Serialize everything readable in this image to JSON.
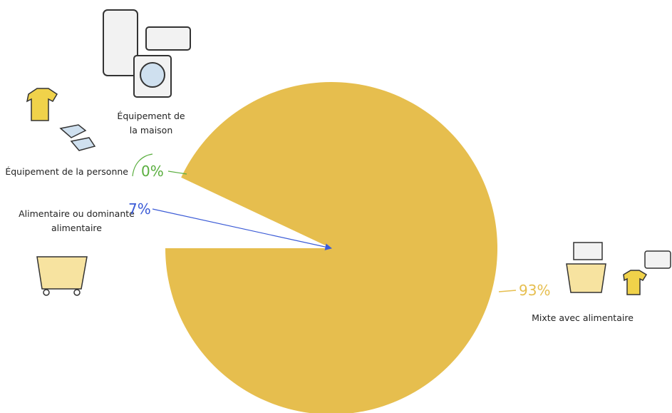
{
  "chart_data": {
    "type": "pie",
    "categories": [
      "Alimentaire ou dominante alimentaire",
      "Équipement de la personne",
      "Équipement de la maison",
      "Mixte avec alimentaire"
    ],
    "values": [
      7,
      0,
      0,
      93
    ],
    "value_labels": [
      "7%",
      "0%",
      null,
      "93%"
    ],
    "slice_colors": [
      "#ffffff",
      "#5aae3f",
      "#5aae3f",
      "#e6be4e"
    ],
    "label_colors": [
      "#3b5bd6",
      "#5aae3f",
      "#5aae3f",
      "#e6be4e"
    ]
  }
}
